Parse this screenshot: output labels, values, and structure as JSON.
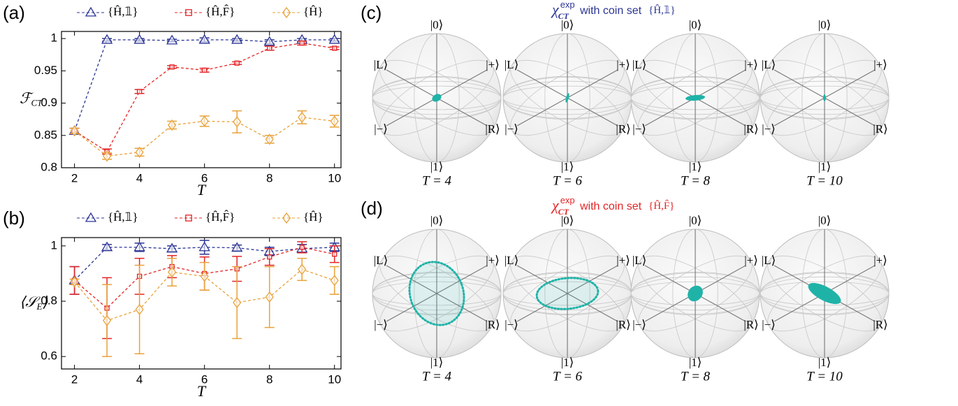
{
  "chart_data": [
    {
      "type": "line",
      "panel_label": "(a)",
      "x_label": "T",
      "y_label": {
        "main": "ℱ",
        "sub": "CT"
      },
      "x": [
        2,
        3,
        4,
        5,
        6,
        7,
        8,
        9,
        10
      ],
      "xlim": [
        1.6,
        10.2
      ],
      "xticks": [
        2,
        4,
        6,
        8,
        10
      ],
      "ylim": [
        0.8,
        1.011
      ],
      "yticks": [
        0.8,
        0.85,
        0.9,
        0.95,
        1
      ],
      "series": [
        {
          "name": "{Ĥ,𝟙}",
          "color": "#2b3595",
          "marker": "triangle",
          "values": [
            0.857,
            0.998,
            0.998,
            0.997,
            0.998,
            0.998,
            0.995,
            0.998,
            0.998
          ],
          "errors": [
            0.004,
            0.002,
            0.002,
            0.002,
            0.003,
            0.002,
            0.003,
            0.002,
            0.002
          ]
        },
        {
          "name": "{Ĥ,F̂}",
          "color": "#e32526",
          "marker": "square",
          "values": [
            0.857,
            0.825,
            0.918,
            0.956,
            0.951,
            0.962,
            0.985,
            0.993,
            0.985
          ],
          "errors": [
            0.004,
            0.004,
            0.003,
            0.002,
            0.003,
            0.002,
            0.003,
            0.003,
            0.002
          ]
        },
        {
          "name": "{Ĥ}",
          "color": "#e8a23a",
          "marker": "diamond",
          "values": [
            0.857,
            0.818,
            0.824,
            0.866,
            0.872,
            0.871,
            0.844,
            0.878,
            0.872
          ],
          "errors": [
            0.004,
            0.005,
            0.006,
            0.006,
            0.008,
            0.017,
            0.006,
            0.01,
            0.009
          ]
        }
      ]
    },
    {
      "type": "line",
      "panel_label": "(b)",
      "x_label": "T",
      "y_label": {
        "main": "⟨𝒮",
        "sub": "E",
        "end": "⟩"
      },
      "x": [
        2,
        3,
        4,
        5,
        6,
        7,
        8,
        9,
        10
      ],
      "xlim": [
        1.6,
        10.2
      ],
      "xticks": [
        2,
        4,
        6,
        8,
        10
      ],
      "ylim": [
        0.555,
        1.03
      ],
      "yticks": [
        0.6,
        0.8,
        1
      ],
      "series": [
        {
          "name": "{Ĥ,𝟙}",
          "color": "#2b3595",
          "marker": "triangle",
          "values": [
            0.875,
            0.995,
            0.995,
            0.99,
            0.995,
            0.993,
            0.98,
            0.99,
            0.995
          ],
          "errors": [
            0.05,
            0.01,
            0.015,
            0.01,
            0.025,
            0.01,
            0.015,
            0.015,
            0.015
          ]
        },
        {
          "name": "{Ĥ,F̂}",
          "color": "#e32526",
          "marker": "square",
          "values": [
            0.875,
            0.775,
            0.89,
            0.925,
            0.9,
            0.917,
            0.96,
            0.995,
            0.97
          ],
          "errors": [
            0.05,
            0.11,
            0.065,
            0.04,
            0.06,
            0.045,
            0.03,
            0.02,
            0.03
          ]
        },
        {
          "name": "{Ĥ}",
          "color": "#e8a23a",
          "marker": "diamond",
          "values": [
            0.87,
            0.73,
            0.77,
            0.905,
            0.89,
            0.795,
            0.815,
            0.915,
            0.875
          ],
          "errors": [
            0.01,
            0.13,
            0.16,
            0.05,
            0.05,
            0.13,
            0.11,
            0.04,
            0.05
          ]
        }
      ]
    }
  ],
  "bloch": {
    "state_labels": [
      "|0⟩",
      "|1⟩",
      "|L⟩",
      "|+⟩",
      "|−⟩",
      "|R⟩"
    ],
    "panels": [
      {
        "label": "(c)",
        "symbol": "χ",
        "sup": "exp",
        "sub": "CT",
        "text": "with coin set",
        "set": "{Ĥ,𝟙}",
        "color": "#2b3595",
        "captions": [
          "T = 4",
          "T = 6",
          "T = 8",
          "T = 10"
        ]
      },
      {
        "label": "(d)",
        "symbol": "χ",
        "sup": "exp",
        "sub": "CT",
        "text": "with coin set",
        "set": "{Ĥ,F̂}",
        "color": "#e32526",
        "captions": [
          "T = 4",
          "T = 6",
          "T = 8",
          "T = 10"
        ]
      }
    ]
  }
}
